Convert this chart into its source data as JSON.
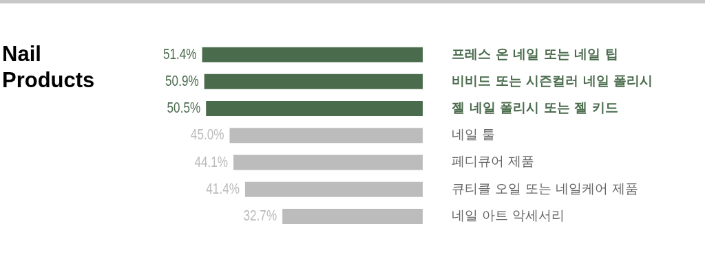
{
  "chart_data": {
    "type": "bar",
    "orientation": "horizontal",
    "title": "Nail Products",
    "categories": [
      "프레스 온 네일 또는 네일 팁",
      "비비드 또는 시즌컬러 네일 폴리시",
      "젤 네일 폴리시 또는 젤 키드",
      "네일 툴",
      "페디큐어 제품",
      "큐티클 오일 또는 네일케어 제품",
      "네일 아트 악세서리"
    ],
    "values": [
      51.4,
      50.9,
      50.5,
      45.0,
      44.1,
      41.4,
      32.7
    ],
    "value_labels": [
      "51.4%",
      "50.9%",
      "50.5%",
      "45.0%",
      "44.1%",
      "41.4%",
      "32.7%"
    ],
    "colors": [
      "#4a6b4c",
      "#4a6b4c",
      "#4a6b4c",
      "#bcbcbc",
      "#bcbcbc",
      "#bcbcbc",
      "#bcbcbc"
    ],
    "tick_labels": "y",
    "legend": false
  }
}
